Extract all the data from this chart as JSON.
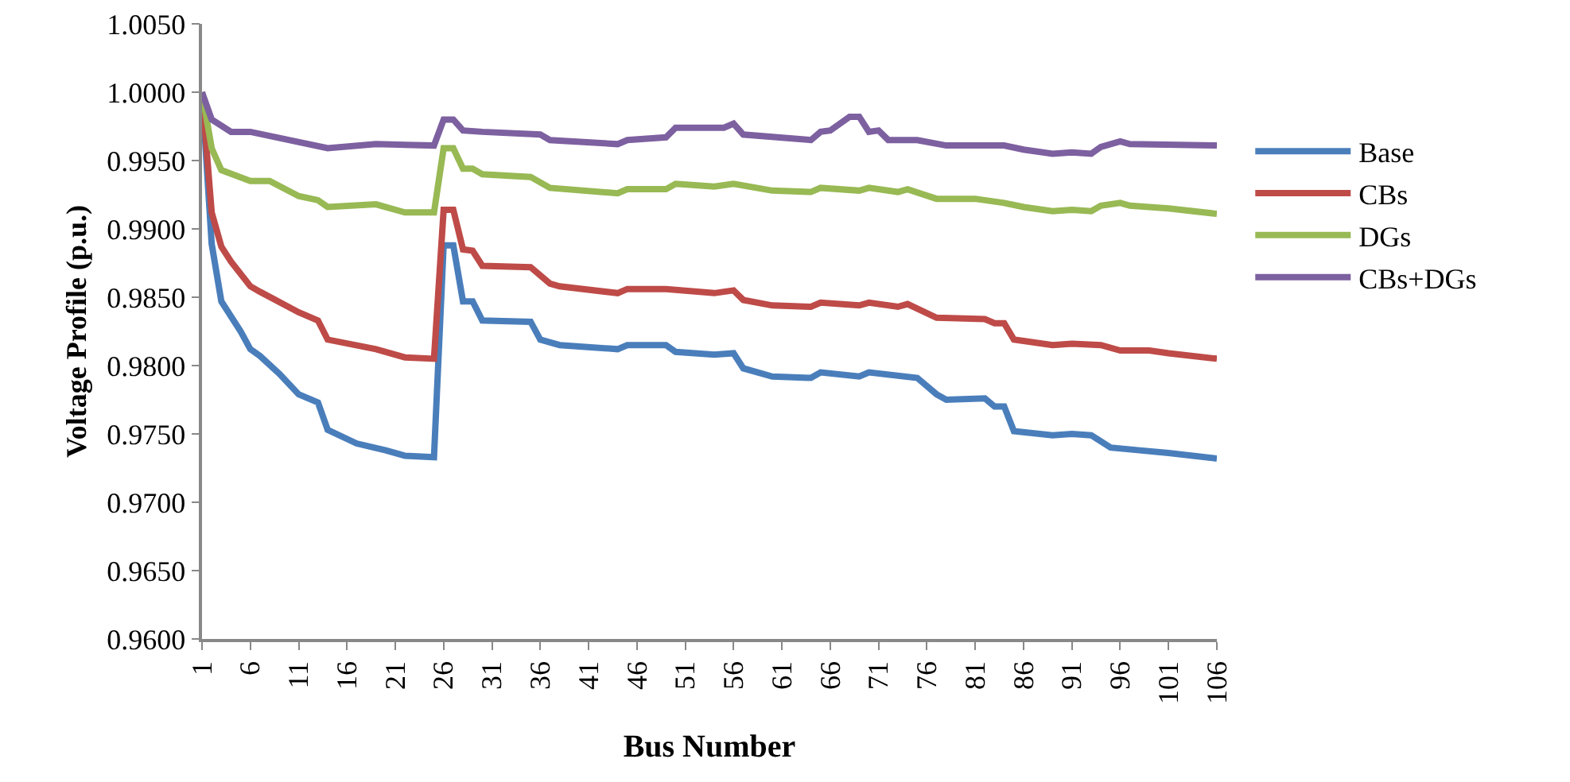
{
  "chart_data": {
    "type": "line",
    "xlabel": "Bus Number",
    "ylabel": "Voltage Profile (p.u.)",
    "xlim": [
      1,
      106
    ],
    "xticks": [
      1,
      6,
      11,
      16,
      21,
      26,
      31,
      36,
      41,
      46,
      51,
      56,
      61,
      66,
      71,
      76,
      81,
      86,
      91,
      96,
      101,
      106
    ],
    "ylim": [
      0.96,
      1.005
    ],
    "yticks": [
      {
        "value": 0.96,
        "label": "0.9600"
      },
      {
        "value": 0.965,
        "label": "0.9650"
      },
      {
        "value": 0.97,
        "label": "0.9700"
      },
      {
        "value": 0.975,
        "label": "0.9750"
      },
      {
        "value": 0.98,
        "label": "0.9800"
      },
      {
        "value": 0.985,
        "label": "0.9850"
      },
      {
        "value": 0.99,
        "label": "0.9900"
      },
      {
        "value": 0.995,
        "label": "0.9950"
      },
      {
        "value": 1.0,
        "label": "1.0000"
      },
      {
        "value": 1.005,
        "label": "1.0050"
      }
    ],
    "legend": "right",
    "marker": "none",
    "line_style": "solid",
    "series": [
      {
        "name": "Base",
        "color": "#4a7ebb",
        "x": [
          1,
          2,
          3,
          5,
          6,
          7,
          9,
          11,
          13,
          14,
          17,
          20,
          22,
          25,
          26,
          27,
          28,
          29,
          30,
          35,
          36,
          38,
          44,
          45,
          49,
          50,
          54,
          56,
          57,
          60,
          64,
          65,
          69,
          70,
          75,
          77,
          78,
          82,
          83,
          84,
          85,
          89,
          91,
          93,
          95,
          98,
          101,
          106
        ],
        "values": [
          1.0,
          0.9889,
          0.9847,
          0.9825,
          0.9812,
          0.9807,
          0.9794,
          0.9779,
          0.9773,
          0.9753,
          0.9743,
          0.9738,
          0.9734,
          0.9733,
          0.9888,
          0.9888,
          0.9847,
          0.9847,
          0.9833,
          0.9832,
          0.9819,
          0.9815,
          0.9812,
          0.9815,
          0.9815,
          0.981,
          0.9808,
          0.9809,
          0.9798,
          0.9792,
          0.9791,
          0.9795,
          0.9792,
          0.9795,
          0.9791,
          0.9779,
          0.9775,
          0.9776,
          0.977,
          0.977,
          0.9752,
          0.9749,
          0.975,
          0.9749,
          0.974,
          0.9738,
          0.9736,
          0.9732
        ]
      },
      {
        "name": "CBs",
        "color": "#be4b48",
        "x": [
          1,
          2,
          3,
          4,
          6,
          7,
          11,
          13,
          14,
          19,
          22,
          25,
          26,
          27,
          28,
          29,
          30,
          35,
          37,
          38,
          44,
          45,
          49,
          54,
          56,
          57,
          60,
          64,
          65,
          69,
          70,
          73,
          74,
          77,
          82,
          83,
          84,
          85,
          89,
          91,
          94,
          96,
          99,
          101,
          106
        ],
        "values": [
          1.0,
          0.9912,
          0.9887,
          0.9876,
          0.9858,
          0.9854,
          0.9839,
          0.9833,
          0.9819,
          0.9812,
          0.9806,
          0.9805,
          0.9914,
          0.9914,
          0.9885,
          0.9884,
          0.9873,
          0.9872,
          0.986,
          0.9858,
          0.9853,
          0.9856,
          0.9856,
          0.9853,
          0.9855,
          0.9848,
          0.9844,
          0.9843,
          0.9846,
          0.9844,
          0.9846,
          0.9843,
          0.9845,
          0.9835,
          0.9834,
          0.9831,
          0.9831,
          0.9819,
          0.9815,
          0.9816,
          0.9815,
          0.9811,
          0.9811,
          0.9809,
          0.9805
        ]
      },
      {
        "name": "DGs",
        "color": "#98b954",
        "x": [
          1,
          2,
          3,
          6,
          8,
          11,
          13,
          14,
          19,
          22,
          25,
          26,
          27,
          28,
          29,
          30,
          35,
          37,
          44,
          45,
          49,
          50,
          54,
          56,
          60,
          64,
          65,
          69,
          70,
          73,
          74,
          77,
          81,
          84,
          86,
          89,
          91,
          93,
          94,
          96,
          97,
          101,
          106
        ],
        "values": [
          1.0,
          0.9959,
          0.9943,
          0.9935,
          0.9935,
          0.9924,
          0.9921,
          0.9916,
          0.9918,
          0.9912,
          0.9912,
          0.9959,
          0.9959,
          0.9944,
          0.9944,
          0.994,
          0.9938,
          0.993,
          0.9926,
          0.9929,
          0.9929,
          0.9933,
          0.9931,
          0.9933,
          0.9928,
          0.9927,
          0.993,
          0.9928,
          0.993,
          0.9927,
          0.9929,
          0.9922,
          0.9922,
          0.9919,
          0.9916,
          0.9913,
          0.9914,
          0.9913,
          0.9917,
          0.9919,
          0.9917,
          0.9915,
          0.9911
        ]
      },
      {
        "name": "CBs+DGs",
        "color": "#7d60a0",
        "x": [
          1,
          2,
          4,
          6,
          14,
          19,
          25,
          26,
          27,
          28,
          30,
          36,
          37,
          44,
          45,
          49,
          50,
          54,
          55,
          56,
          57,
          64,
          65,
          66,
          68,
          69,
          70,
          71,
          72,
          75,
          78,
          84,
          86,
          89,
          91,
          93,
          94,
          96,
          97,
          106
        ],
        "values": [
          1.0,
          0.998,
          0.9971,
          0.9971,
          0.9959,
          0.9962,
          0.9961,
          0.998,
          0.998,
          0.9972,
          0.9971,
          0.9969,
          0.9965,
          0.9962,
          0.9965,
          0.9967,
          0.9974,
          0.9974,
          0.9974,
          0.9977,
          0.9969,
          0.9965,
          0.9971,
          0.9972,
          0.9982,
          0.9982,
          0.9971,
          0.9972,
          0.9965,
          0.9965,
          0.9961,
          0.9961,
          0.9958,
          0.9955,
          0.9956,
          0.9955,
          0.996,
          0.9964,
          0.9962,
          0.9961
        ]
      }
    ]
  }
}
